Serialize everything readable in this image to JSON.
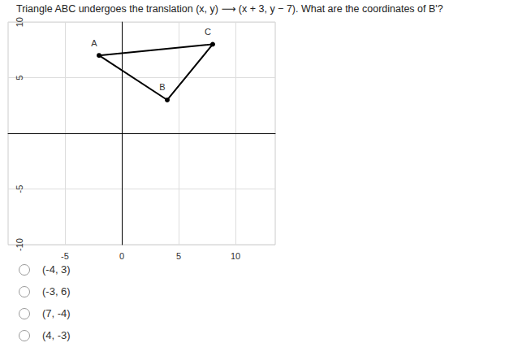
{
  "question": "Triangle ABC undergoes the translation (x, y) ⟶ (x + 3, y − 7). What are the coordinates of B'?",
  "chart_data": {
    "type": "polygon",
    "xlim": [
      -10,
      13.5
    ],
    "ylim": [
      -10,
      10
    ],
    "xticks": [
      -5,
      0,
      5,
      10
    ],
    "yticks": [
      -10,
      -5,
      5,
      10
    ],
    "grid": true,
    "color": "#000000",
    "marker": "circle",
    "points": [
      {
        "label": "A",
        "x": -2,
        "y": 7
      },
      {
        "label": "B",
        "x": 4,
        "y": 3
      },
      {
        "label": "C",
        "x": 8,
        "y": 8
      }
    ]
  },
  "choices": [
    "(-4, 3)",
    "(-3, 6)",
    "(7, -4)",
    "(4, -3)"
  ]
}
